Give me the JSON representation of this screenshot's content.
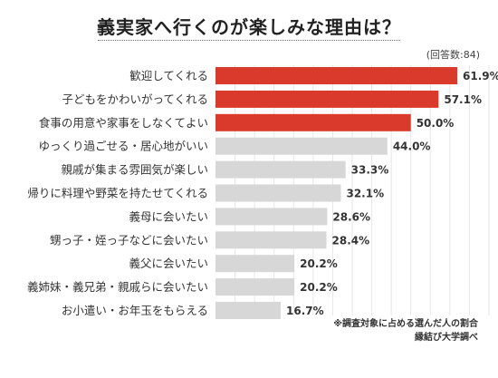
{
  "chart_data": {
    "type": "bar",
    "orientation": "horizontal",
    "title": "義実家へ行くのが楽しみな理由は？",
    "respondents": "(回答数:84)",
    "categories": [
      "歓迎してくれる",
      "子どもをかわいがってくれる",
      "食事の用意や家事をしなくてよい",
      "ゆっくり過ごせる・居心地がいい",
      "親戚が集まる雰囲気が楽しい",
      "帰りに料理や野菜を持たせてくれる",
      "義母に会いたい",
      "甥っ子・姪っ子などに会いたい",
      "義父に会いたい",
      "義姉妹・義兄弟・親戚らに会いたい",
      "お小遣い・お年玉をもらえる"
    ],
    "values": [
      61.9,
      57.1,
      50.0,
      44.0,
      33.3,
      32.1,
      28.6,
      28.4,
      20.2,
      20.2,
      16.7
    ],
    "value_labels": [
      "61.9%",
      "57.1%",
      "50.0%",
      "44.0%",
      "33.3%",
      "32.1%",
      "28.6%",
      "28.4%",
      "20.2%",
      "20.2%",
      "16.7%"
    ],
    "highlight_count": 3,
    "xlim": [
      0,
      70
    ],
    "grid": true,
    "colors": {
      "highlight": "#d93a2b",
      "normal": "#d7d7d7",
      "grid": "#e6e6e6"
    },
    "footnotes": [
      "※調査対象に占める選んだ人の割合",
      "縁結び大学調べ"
    ]
  }
}
